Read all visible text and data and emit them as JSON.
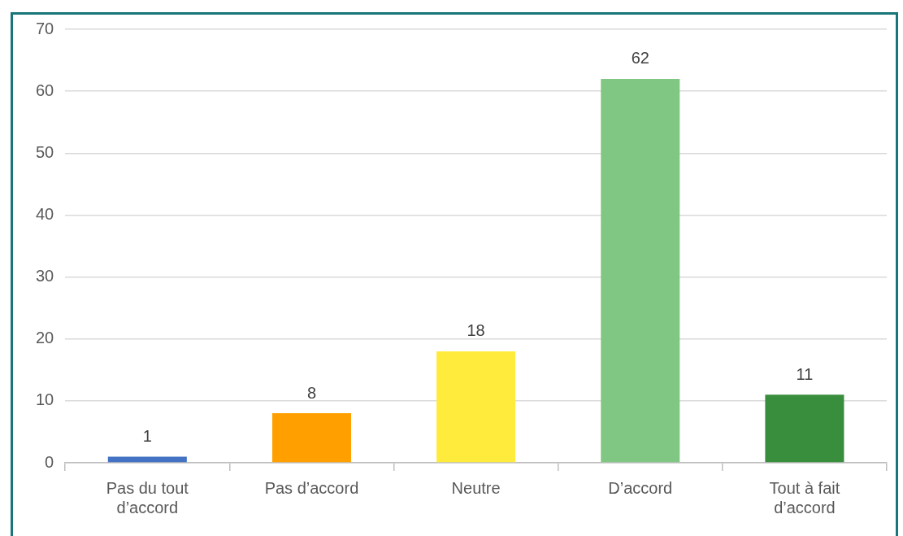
{
  "chart_data": {
    "type": "bar",
    "categories": [
      "Pas du tout d’accord",
      "Pas d’accord",
      "Neutre",
      "D’accord",
      "Tout à fait d’accord"
    ],
    "values": [
      1,
      8,
      18,
      62,
      11
    ],
    "colors": [
      "#4472c4",
      "#ffa000",
      "#ffeb3b",
      "#81c784",
      "#388e3c"
    ],
    "ylim": [
      0,
      70
    ],
    "yticks": [
      0,
      10,
      20,
      30,
      40,
      50,
      60,
      70
    ],
    "grid": "y",
    "legend": false,
    "data_labels": true
  }
}
